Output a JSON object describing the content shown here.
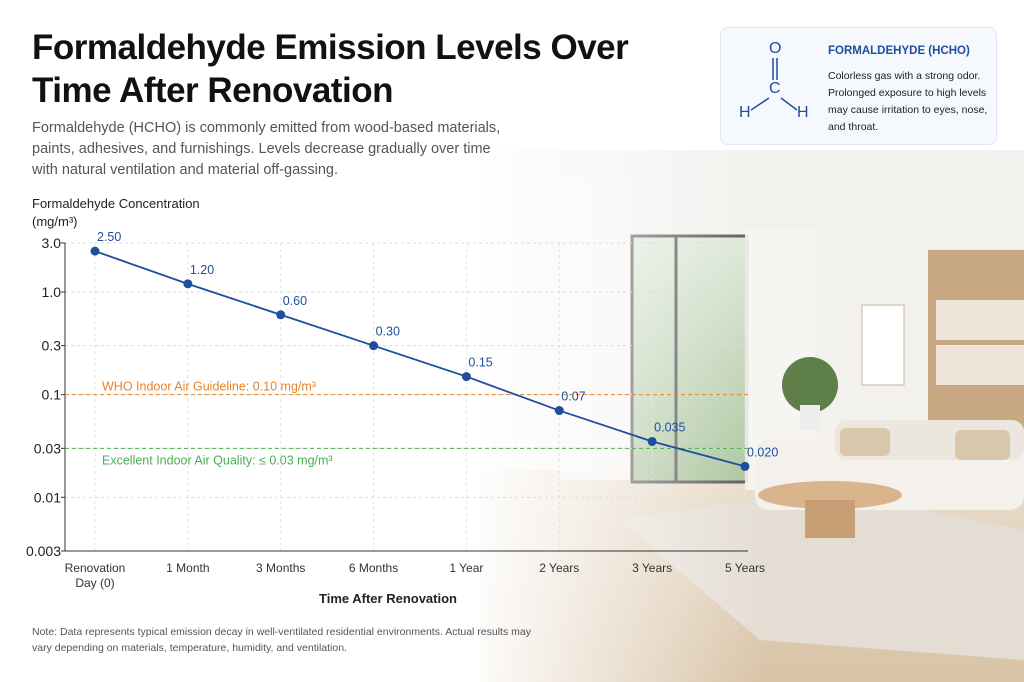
{
  "title": "Formaldehyde Emission Levels Over Time After Renovation",
  "description": "Formaldehyde (HCHO) is commonly emitted from wood-based materials, paints, adhesives, and furnishings. Levels decrease gradually over time with natural ventilation and material off-gassing.",
  "info_card": {
    "title": "FORMALDEHYDE (HCHO)",
    "text": "Colorless gas with a strong odor. Prolonged exposure to high levels may cause irritation to eyes, nose, and throat."
  },
  "molecule": {
    "atoms": [
      "O",
      "C",
      "H",
      "H"
    ]
  },
  "note": "Note: Data represents typical emission decay in well-ventilated residential environments. Actual results may vary depending on materials, temperature, humidity, and ventilation.",
  "chart_data": {
    "type": "line",
    "y_label": "Formaldehyde Concentration (mg/m³)",
    "x_label": "Time After Renovation",
    "categories": [
      "Renovation Day (0)",
      "1 Month",
      "3 Months",
      "6 Months",
      "1 Year",
      "2 Years",
      "3 Years",
      "5 Years"
    ],
    "series": [
      {
        "name": "Formaldehyde",
        "color": "#1f4e9c",
        "values": [
          2.5,
          1.2,
          0.6,
          0.3,
          0.15,
          0.07,
          0.035,
          0.02
        ],
        "value_labels": [
          "2.50",
          "1.20",
          "0.60",
          "0.30",
          "0.15",
          "0.07",
          "0.035",
          "0.020"
        ]
      }
    ],
    "log_scale": true,
    "ylim": [
      0.003,
      3
    ],
    "yticks": [
      0.003,
      0.01,
      0.03,
      0.1,
      0.3,
      {
        "value": 1,
        "label": "1.0"
      },
      {
        "value": 3,
        "label": "3.0"
      }
    ],
    "grid": true,
    "reference_lines": [
      {
        "value": 0.1,
        "label": "WHO Indoor Air Guideline: 0.10 mg/m³",
        "color": "#e8842a"
      },
      {
        "value": 0.03,
        "label": "Excellent Indoor Air Quality: ≤ 0.03 mg/m³",
        "color": "#4caf50"
      }
    ]
  }
}
